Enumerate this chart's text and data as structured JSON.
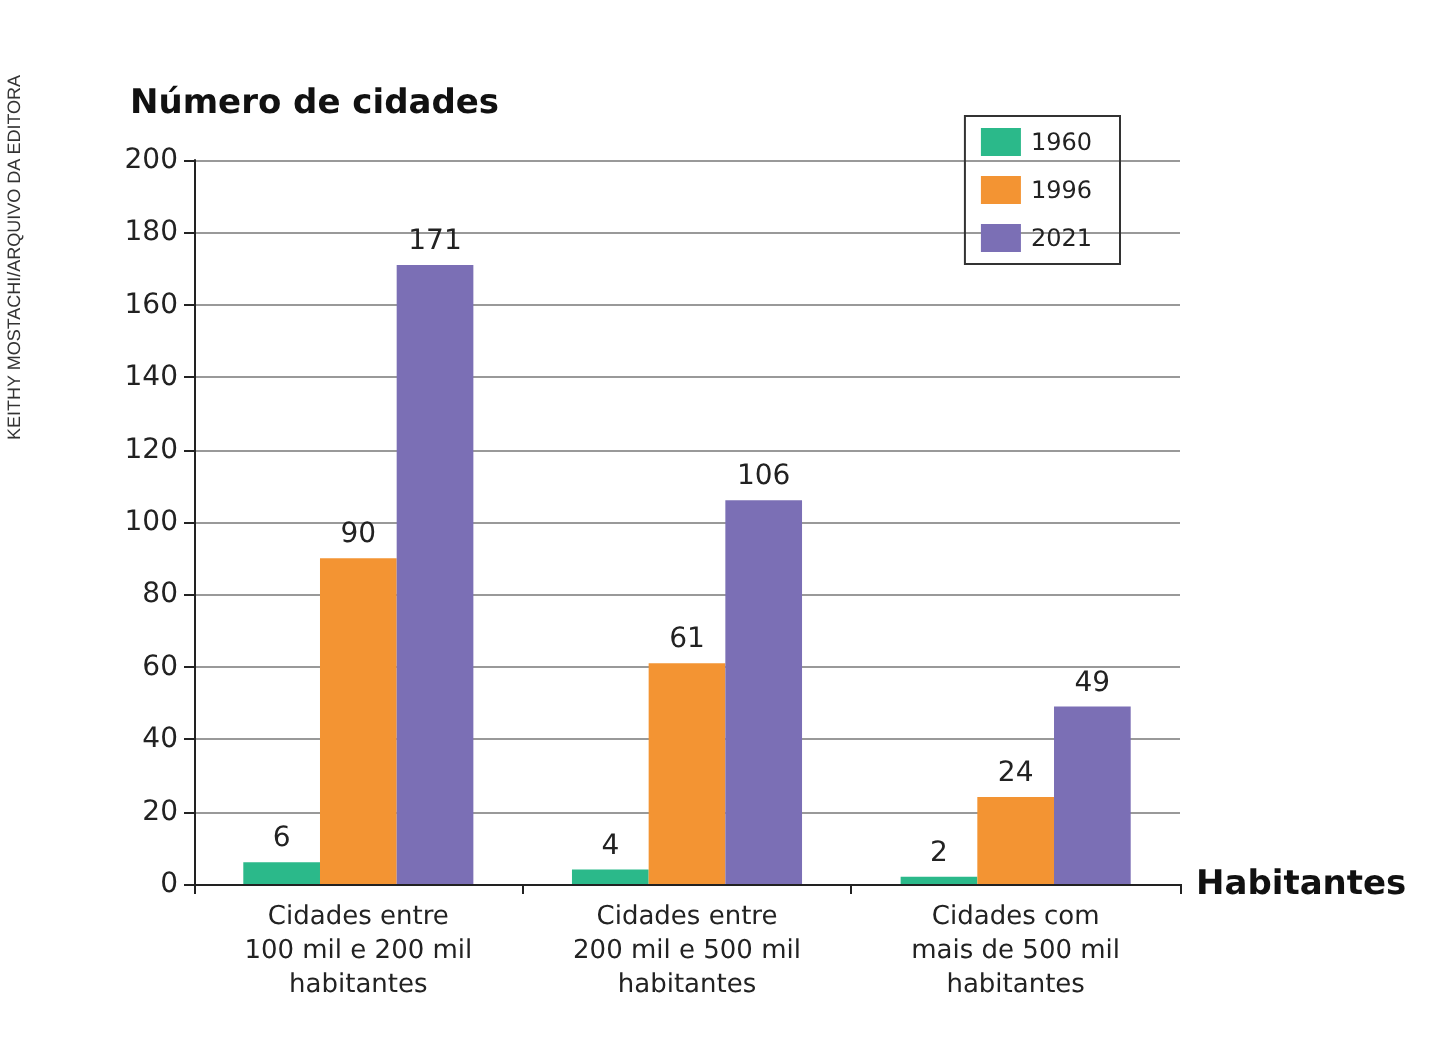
{
  "chart_data": {
    "type": "bar",
    "title": "Número de cidades",
    "xlabel": "Habitantes",
    "categories": [
      "Cidades entre\n100 mil e 200 mil\nhabitantes",
      "Cidades entre\n200 mil e 500 mil\nhabitantes",
      "Cidades com\nmais de 500 mil\nhabitantes"
    ],
    "series": [
      {
        "name": "1960",
        "color": "#2bb98a",
        "values": [
          6,
          4,
          2
        ]
      },
      {
        "name": "1996",
        "color": "#f39433",
        "values": [
          90,
          61,
          24
        ]
      },
      {
        "name": "2021",
        "color": "#7b6fb5",
        "values": [
          171,
          106,
          49
        ]
      }
    ],
    "ylim": [
      0,
      200
    ],
    "yticks": [
      0,
      20,
      40,
      60,
      80,
      100,
      120,
      140,
      160,
      180,
      200
    ],
    "grid": "y",
    "legend": "top right",
    "data_labels": true,
    "annotations": [
      "KEITHY MOSTACHI/ARQUIVO DA EDITORA"
    ]
  }
}
